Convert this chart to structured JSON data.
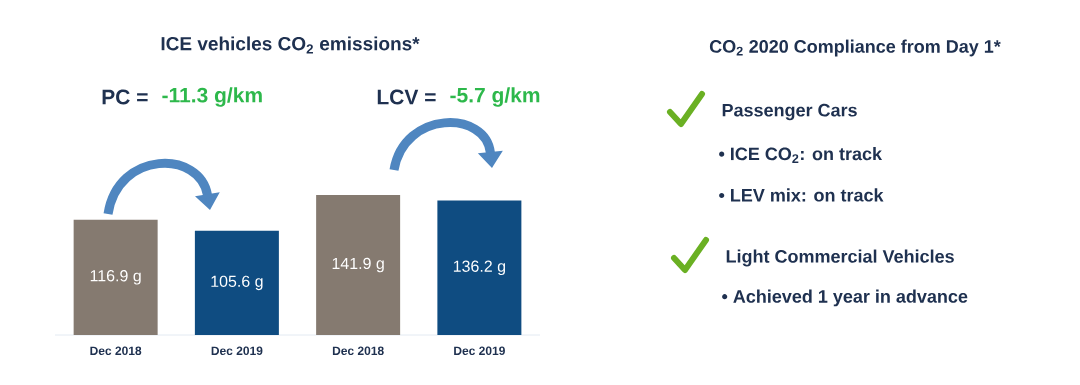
{
  "chart_data": [
    {
      "type": "bar",
      "title": "ICE vehicles CO$_{2}$ emissions*",
      "categories": [
        "Dec 2018",
        "Dec 2019",
        "Dec 2018",
        "Dec 2019"
      ],
      "values": [
        116.9,
        105.6,
        141.9,
        136.2
      ],
      "colors": [
        "#857a70",
        "#0f4c81",
        "#857a70",
        "#0f4c81"
      ],
      "value_labels": [
        "116.9 g",
        "105.6 g",
        "141.9 g",
        "136.2 g"
      ],
      "annotations": [
        "PC =",
        "-11.3 g/km",
        "LCV =",
        "-5.7 g/km"
      ]
    },
    {
      "type": "other",
      "title": "CO$_{2}$ 2020 Compliance from Day 1*",
      "annotations": [
        "Passenger Cars",
        "• ICE CO$_{2}$: on track",
        "• LEV mix: on track",
        "Light Commercial Vehicles",
        "• Achieved 1 year in advance"
      ]
    }
  ]
}
